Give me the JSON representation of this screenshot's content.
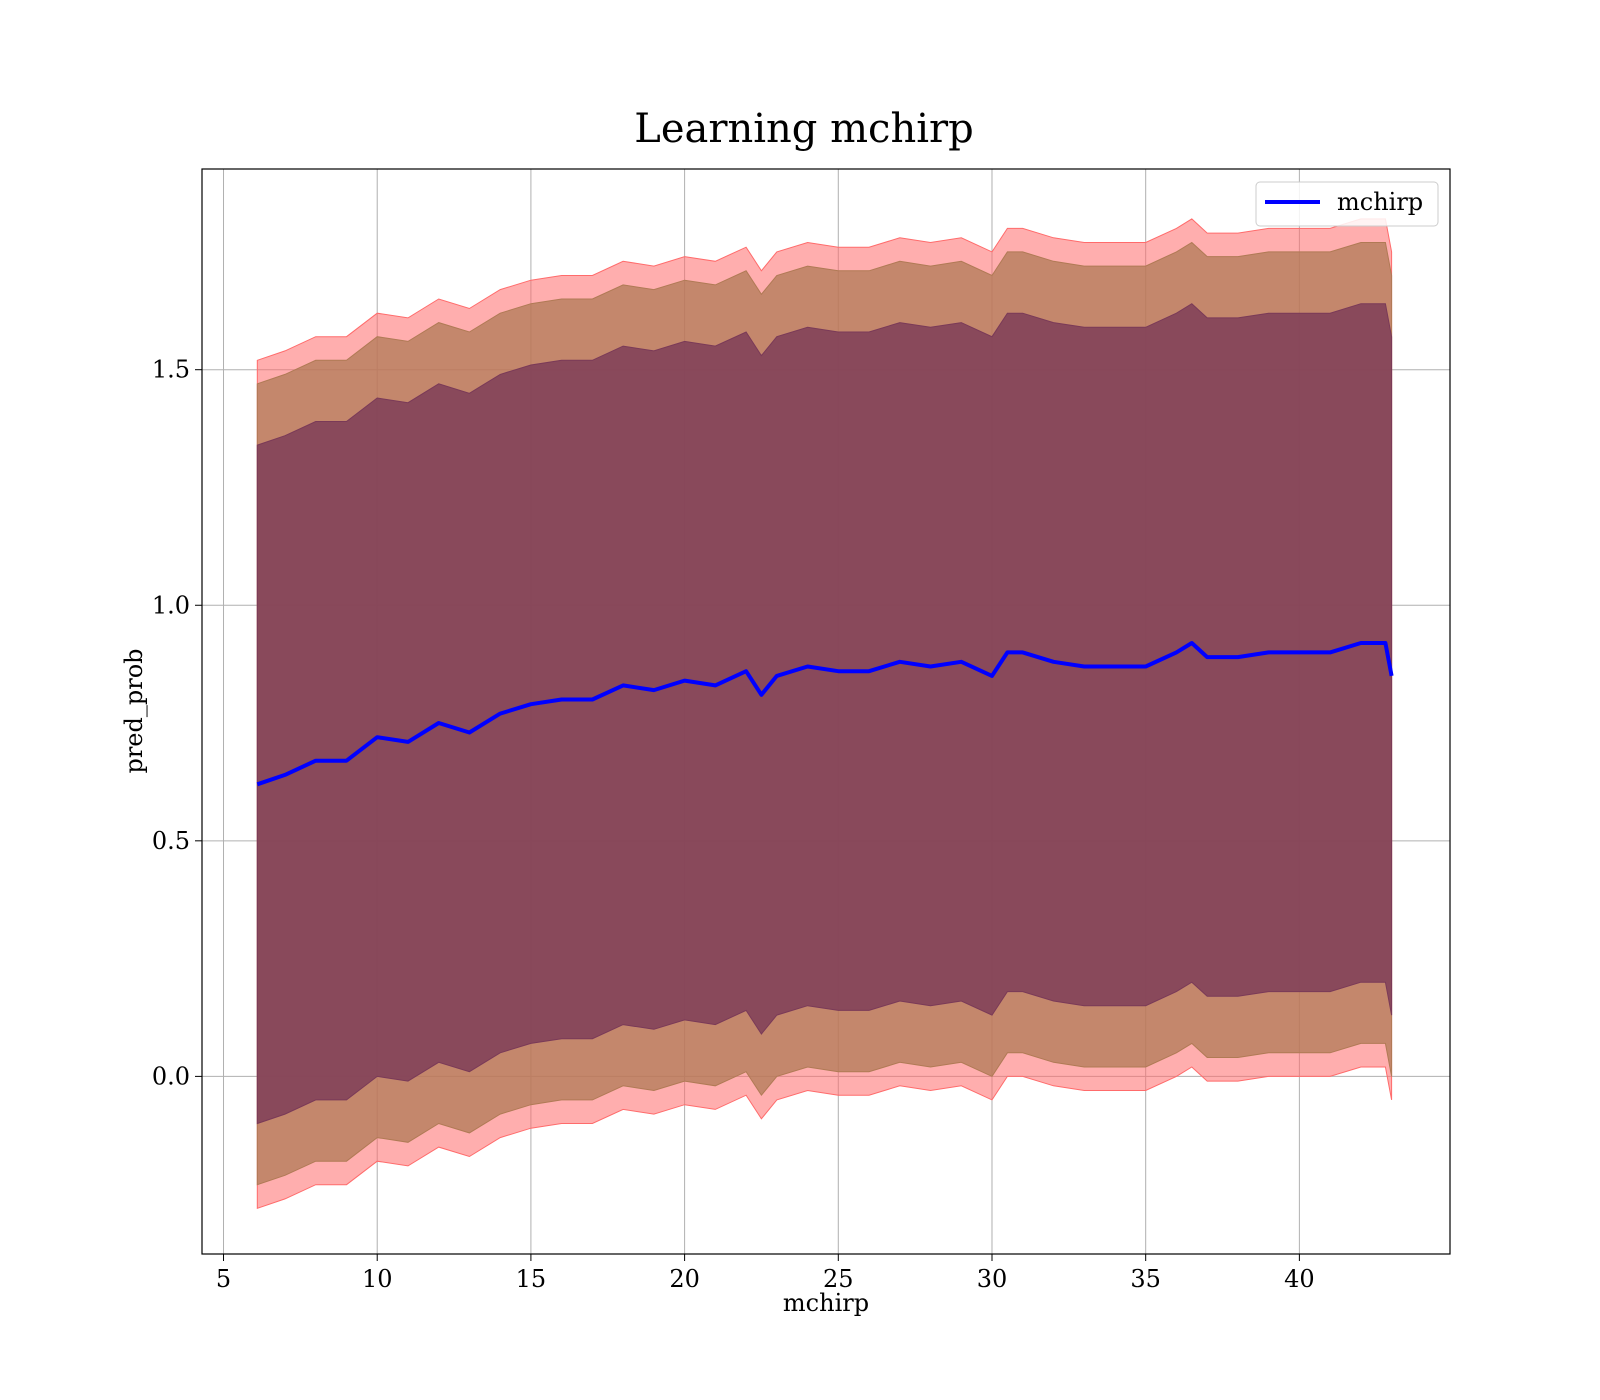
{
  "chart_data": {
    "type": "area",
    "title": "Learning mchirp",
    "xlabel": "mchirp",
    "ylabel": "pred_prob",
    "xlim": [
      4.3,
      44.9
    ],
    "ylim": [
      -0.377,
      1.926
    ],
    "xticks": [
      5,
      10,
      15,
      20,
      25,
      30,
      35,
      40
    ],
    "xtick_labels": [
      "5",
      "10",
      "15",
      "20",
      "25",
      "30",
      "35",
      "40"
    ],
    "yticks": [
      0.0,
      0.5,
      1.0,
      1.5
    ],
    "ytick_labels": [
      "0.0",
      "0.5",
      "1.0",
      "1.5"
    ],
    "grid": true,
    "legend": {
      "position": "upper right",
      "entries": [
        "mchirp"
      ]
    },
    "colors": {
      "line": "#0000ff",
      "band_outer": "#ff6b6b",
      "band_middle": "#b07a55",
      "band_inner": "#7a3a58"
    },
    "x": [
      6.1,
      7.0,
      8.0,
      9.0,
      10.0,
      11.0,
      12.0,
      13.0,
      14.0,
      15.0,
      16.0,
      17.0,
      18.0,
      19.0,
      20.0,
      21.0,
      22.0,
      22.5,
      23.0,
      24.0,
      25.0,
      26.0,
      27.0,
      28.0,
      29.0,
      30.0,
      30.5,
      31.0,
      32.0,
      33.0,
      34.0,
      35.0,
      36.0,
      36.5,
      37.0,
      38.0,
      39.0,
      40.0,
      41.0,
      42.0,
      42.8,
      43.0
    ],
    "series": [
      {
        "name": "mchirp",
        "values": [
          0.62,
          0.64,
          0.67,
          0.67,
          0.72,
          0.71,
          0.75,
          0.73,
          0.77,
          0.79,
          0.8,
          0.8,
          0.83,
          0.82,
          0.84,
          0.83,
          0.86,
          0.81,
          0.85,
          0.87,
          0.86,
          0.86,
          0.88,
          0.87,
          0.88,
          0.85,
          0.9,
          0.9,
          0.88,
          0.87,
          0.87,
          0.87,
          0.9,
          0.92,
          0.89,
          0.89,
          0.9,
          0.9,
          0.9,
          0.92,
          0.92,
          0.85
        ]
      }
    ],
    "bands": [
      {
        "upper_offset": 0.9,
        "lower_offset": 0.9
      },
      {
        "upper_offset": 0.85,
        "lower_offset": 0.85
      },
      {
        "upper_offset": 0.72,
        "lower_offset": 0.72
      }
    ]
  }
}
